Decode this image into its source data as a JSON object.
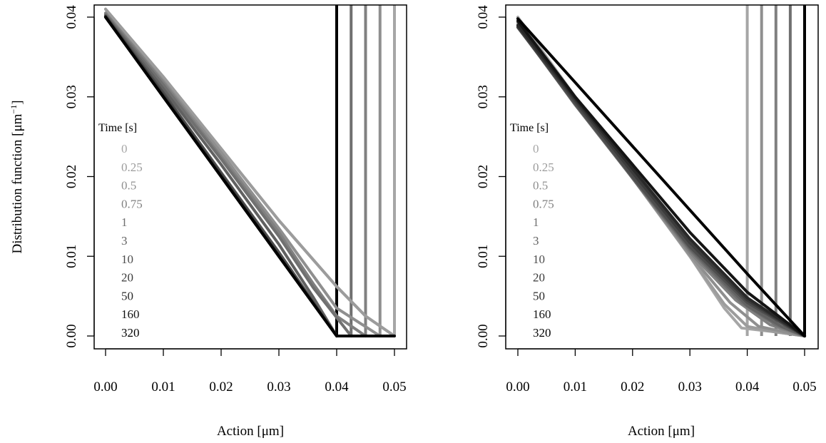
{
  "figure": {
    "ylabel_main": "Distribution function [μm",
    "ylabel_sup": "−1",
    "ylabel_end": "]"
  },
  "chart_data": [
    {
      "type": "line",
      "panel": "left",
      "xlabel": "Action [μm]",
      "xlim": [
        0.0,
        0.05
      ],
      "ylim": [
        0.0,
        0.04
      ],
      "x_ticks": [
        "0.00",
        "0.01",
        "0.02",
        "0.03",
        "0.04",
        "0.05"
      ],
      "y_ticks": [
        "0.00",
        "0.01",
        "0.02",
        "0.03",
        "0.04"
      ],
      "legend_title": "Time [s]",
      "legend_position": "left",
      "series": [
        {
          "name": "0",
          "color": "#a6a6a6",
          "x": [
            0.0,
            0.01,
            0.02,
            0.03,
            0.04,
            0.045,
            0.05
          ],
          "y": [
            0.041,
            0.0325,
            0.0235,
            0.0145,
            0.0062,
            0.0025,
            0.0
          ]
        },
        {
          "name": "0.25",
          "color": "#9c9c9c",
          "x": [
            0.0,
            0.01,
            0.02,
            0.03,
            0.04,
            0.045,
            0.05
          ],
          "y": [
            0.041,
            0.0325,
            0.0235,
            0.0145,
            0.0062,
            0.0025,
            0.0
          ]
        },
        {
          "name": "0.5",
          "color": "#8f8f8f",
          "x": [
            0.0,
            0.01,
            0.02,
            0.03,
            0.036,
            0.04,
            0.0475
          ],
          "y": [
            0.0405,
            0.032,
            0.023,
            0.0135,
            0.0075,
            0.0035,
            0.0
          ]
        },
        {
          "name": "0.75",
          "color": "#808080",
          "x": [
            0.0,
            0.01,
            0.02,
            0.03,
            0.036,
            0.04,
            0.045
          ],
          "y": [
            0.0405,
            0.0318,
            0.0225,
            0.013,
            0.0065,
            0.0025,
            0.0
          ]
        },
        {
          "name": "1",
          "color": "#707070",
          "x": [
            0.0,
            0.01,
            0.02,
            0.03,
            0.036,
            0.0425
          ],
          "y": [
            0.0403,
            0.0315,
            0.0222,
            0.0125,
            0.006,
            0.0
          ]
        },
        {
          "name": "3",
          "color": "#616161",
          "x": [
            0.0,
            0.01,
            0.02,
            0.03,
            0.036,
            0.04
          ],
          "y": [
            0.0402,
            0.031,
            0.0215,
            0.0115,
            0.0048,
            0.0
          ]
        },
        {
          "name": "10",
          "color": "#4d4d4d",
          "x": [
            0.0,
            0.01,
            0.02,
            0.03,
            0.04
          ],
          "y": [
            0.0401,
            0.0305,
            0.0205,
            0.0105,
            0.0
          ]
        },
        {
          "name": "20",
          "color": "#3b3b3b",
          "x": [
            0.0,
            0.01,
            0.02,
            0.03,
            0.04
          ],
          "y": [
            0.0401,
            0.0302,
            0.0202,
            0.0101,
            0.0
          ]
        },
        {
          "name": "50",
          "color": "#292929",
          "x": [
            0.0,
            0.01,
            0.02,
            0.03,
            0.04
          ],
          "y": [
            0.04,
            0.03,
            0.02,
            0.01,
            0.0
          ]
        },
        {
          "name": "160",
          "color": "#141414",
          "x": [
            0.0,
            0.01,
            0.02,
            0.03,
            0.04
          ],
          "y": [
            0.04,
            0.03,
            0.02,
            0.01,
            0.0
          ]
        },
        {
          "name": "320",
          "color": "#000000",
          "x": [
            0.0,
            0.01,
            0.02,
            0.03,
            0.04,
            0.05
          ],
          "y": [
            0.04,
            0.03,
            0.02,
            0.01,
            0.0,
            0.0
          ]
        }
      ],
      "vlines": [
        {
          "x": 0.04,
          "color": "#000000"
        },
        {
          "x": 0.0425,
          "color": "#707070"
        },
        {
          "x": 0.045,
          "color": "#808080"
        },
        {
          "x": 0.0475,
          "color": "#8f8f8f"
        },
        {
          "x": 0.05,
          "color": "#a6a6a6"
        }
      ]
    },
    {
      "type": "line",
      "panel": "right",
      "xlabel": "Action [μm]",
      "xlim": [
        0.0,
        0.05
      ],
      "ylim": [
        0.0,
        0.04
      ],
      "x_ticks": [
        "0.00",
        "0.01",
        "0.02",
        "0.03",
        "0.04",
        "0.05"
      ],
      "y_ticks": [
        "0.00",
        "0.01",
        "0.02",
        "0.03",
        "0.04"
      ],
      "legend_title": "Time [s]",
      "legend_position": "left",
      "series": [
        {
          "name": "0",
          "color": "#a6a6a6",
          "x": [
            0.0,
            0.01,
            0.02,
            0.03,
            0.036,
            0.039,
            0.045,
            0.05
          ],
          "y": [
            0.04,
            0.03,
            0.02,
            0.01,
            0.0035,
            0.001,
            0.0005,
            0.0
          ]
        },
        {
          "name": "0.25",
          "color": "#9c9c9c",
          "x": [
            0.0,
            0.01,
            0.02,
            0.03,
            0.036,
            0.04,
            0.045,
            0.05
          ],
          "y": [
            0.0398,
            0.0298,
            0.0198,
            0.01,
            0.004,
            0.0012,
            0.0005,
            0.0
          ]
        },
        {
          "name": "0.5",
          "color": "#8f8f8f",
          "x": [
            0.0,
            0.01,
            0.02,
            0.03,
            0.037,
            0.042,
            0.05
          ],
          "y": [
            0.0396,
            0.0296,
            0.0198,
            0.0102,
            0.0042,
            0.0012,
            0.0
          ]
        },
        {
          "name": "0.75",
          "color": "#808080",
          "x": [
            0.0,
            0.01,
            0.02,
            0.03,
            0.038,
            0.044,
            0.05
          ],
          "y": [
            0.0393,
            0.0294,
            0.0198,
            0.0105,
            0.0045,
            0.0014,
            0.0
          ]
        },
        {
          "name": "1",
          "color": "#707070",
          "x": [
            0.0,
            0.01,
            0.02,
            0.03,
            0.039,
            0.045,
            0.05
          ],
          "y": [
            0.039,
            0.0292,
            0.0198,
            0.0108,
            0.0042,
            0.0014,
            0.0
          ]
        },
        {
          "name": "3",
          "color": "#616161",
          "x": [
            0.0,
            0.01,
            0.02,
            0.03,
            0.04,
            0.046,
            0.05
          ],
          "y": [
            0.0388,
            0.029,
            0.0198,
            0.011,
            0.0038,
            0.0012,
            0.0
          ]
        },
        {
          "name": "10",
          "color": "#4d4d4d",
          "x": [
            0.0,
            0.01,
            0.02,
            0.03,
            0.04,
            0.047,
            0.05
          ],
          "y": [
            0.0387,
            0.0292,
            0.02,
            0.0112,
            0.0042,
            0.0012,
            0.0
          ]
        },
        {
          "name": "20",
          "color": "#3b3b3b",
          "x": [
            0.0,
            0.01,
            0.02,
            0.03,
            0.04,
            0.05
          ],
          "y": [
            0.0388,
            0.0295,
            0.0205,
            0.0117,
            0.0045,
            0.0
          ]
        },
        {
          "name": "50",
          "color": "#292929",
          "x": [
            0.0,
            0.01,
            0.02,
            0.03,
            0.04,
            0.05
          ],
          "y": [
            0.039,
            0.0298,
            0.021,
            0.0122,
            0.0048,
            0.0
          ]
        },
        {
          "name": "160",
          "color": "#141414",
          "x": [
            0.0,
            0.01,
            0.02,
            0.03,
            0.04,
            0.05
          ],
          "y": [
            0.0395,
            0.03,
            0.0215,
            0.013,
            0.0055,
            0.0
          ]
        },
        {
          "name": "320",
          "color": "#000000",
          "x": [
            0.0,
            0.01,
            0.02,
            0.03,
            0.04,
            0.05
          ],
          "y": [
            0.0398,
            0.0318,
            0.0238,
            0.0158,
            0.0078,
            0.0
          ]
        }
      ],
      "vlines": [
        {
          "x": 0.04,
          "color": "#a6a6a6"
        },
        {
          "x": 0.0425,
          "color": "#8f8f8f"
        },
        {
          "x": 0.045,
          "color": "#808080"
        },
        {
          "x": 0.0475,
          "color": "#707070"
        },
        {
          "x": 0.05,
          "color": "#000000"
        }
      ]
    }
  ]
}
